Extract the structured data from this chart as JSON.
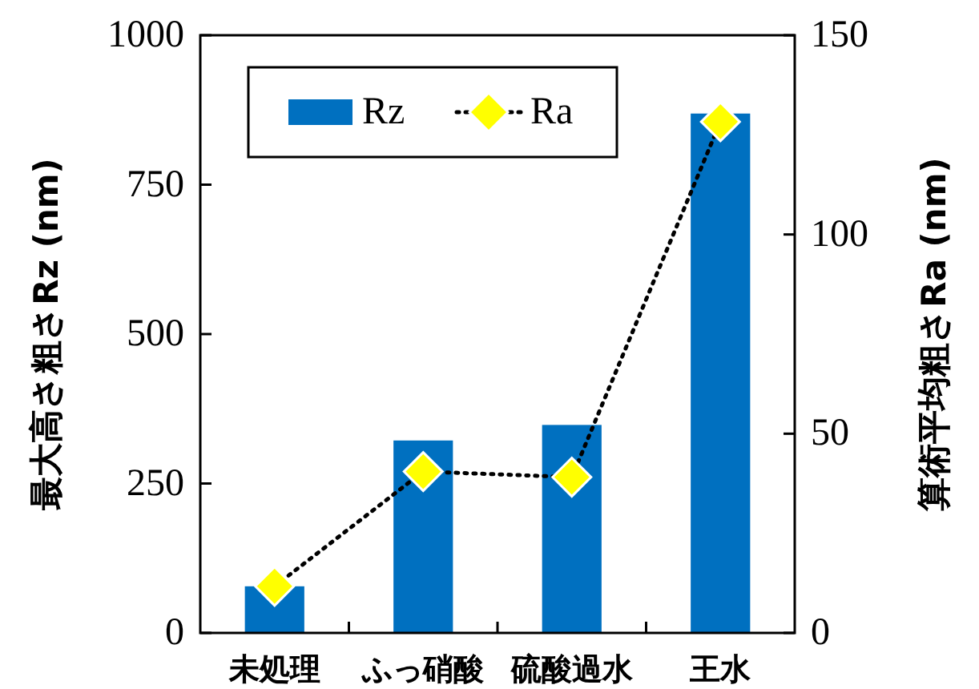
{
  "chart_data": {
    "type": "bar",
    "categories": [
      "未処理",
      "ふっ硝酸",
      "硫酸過水",
      "王水"
    ],
    "ylabel": "最大高さ粗さRz (nm)",
    "y2label": "算術平均粗さRa (nm)",
    "ylim": [
      0,
      1000
    ],
    "yticks": [
      0,
      250,
      500,
      750,
      1000
    ],
    "y2lim": [
      0,
      150
    ],
    "y2ticks": [
      0,
      50,
      100,
      150
    ],
    "legend": "top left",
    "grid": false,
    "series": [
      {
        "name": "Rz",
        "color": "#0070c0",
        "values": [
          78,
          322,
          348,
          869
        ]
      },
      {
        "name": "Ra",
        "type": "line",
        "axis": "y2",
        "color": "#ffff00",
        "marker": "diamond",
        "line_style": "dotted",
        "values": [
          11.7,
          40.5,
          39.1,
          128.3
        ]
      }
    ]
  }
}
